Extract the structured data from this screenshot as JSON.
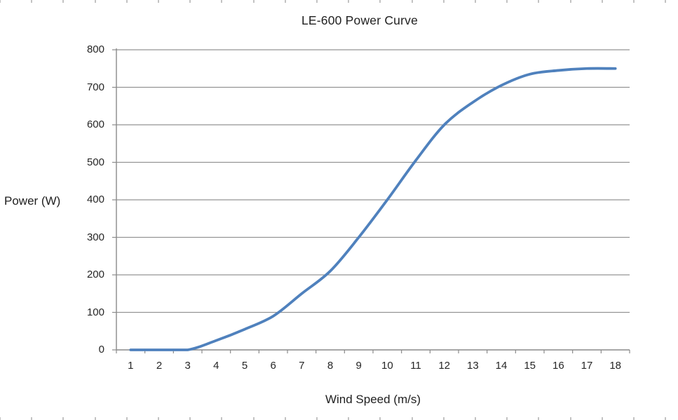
{
  "page": {
    "background": "#ffffff"
  },
  "chart_data": {
    "type": "line",
    "title": "LE-600 Power Curve",
    "xlabel": "Wind Speed (m/s)",
    "ylabel": "Power (W)",
    "categories": [
      1,
      2,
      3,
      4,
      5,
      6,
      7,
      8,
      9,
      10,
      11,
      12,
      13,
      14,
      15,
      16,
      17,
      18
    ],
    "series": [
      {
        "values": [
          0,
          0,
          0,
          25,
          55,
          90,
          150,
          210,
          300,
          400,
          505,
          600,
          660,
          705,
          735,
          745,
          750,
          750
        ],
        "color": "#4F81BD",
        "smooth": true
      }
    ],
    "ylim": [
      0,
      800
    ],
    "yticks": [
      0,
      100,
      200,
      300,
      400,
      500,
      600,
      700,
      800
    ],
    "grid": "horizontal",
    "legend": "none",
    "colors": {
      "gridline": "#949494",
      "axis": "#8a8a8a",
      "tick": "#8a8a8a",
      "text": "#262626",
      "edge_stub": "#c3c3c3"
    }
  }
}
